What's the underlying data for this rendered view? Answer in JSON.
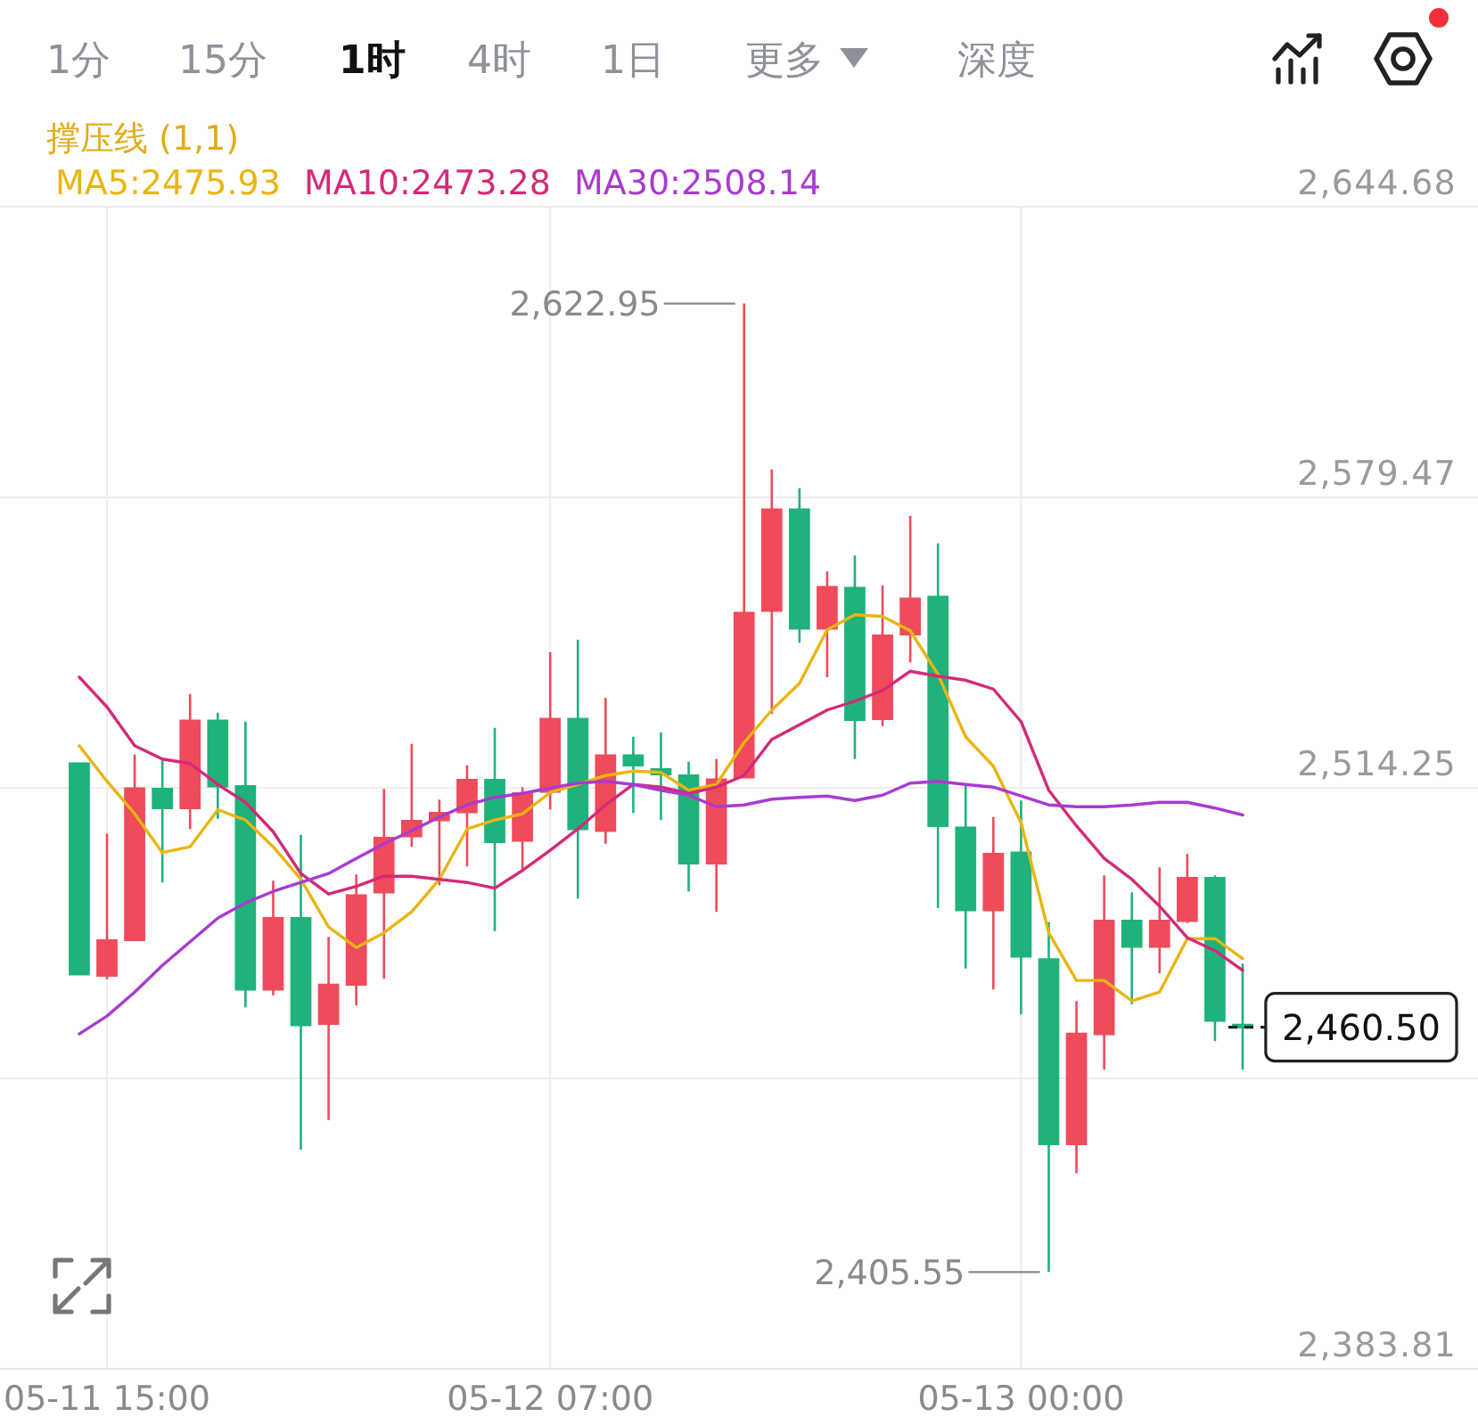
{
  "chart_data": {
    "type": "candlestick",
    "legend_title": "撑压线 (1,1)",
    "legend": "top left",
    "grid": true,
    "annotations": [
      "1分",
      "15分",
      "1时",
      "4时",
      "1日",
      "更多",
      "深度",
      "2,622.95",
      "2,405.55",
      "2,460.50"
    ],
    "categories": [
      null,
      "05-11 15:00",
      null,
      null,
      null,
      null,
      null,
      null,
      null,
      null,
      null,
      null,
      null,
      null,
      null,
      null,
      null,
      "05-12 07:00",
      null,
      null,
      null,
      null,
      null,
      null,
      null,
      null,
      null,
      null,
      null,
      null,
      null,
      null,
      null,
      null,
      "05-13 00:00",
      null,
      null,
      null,
      null,
      null,
      null,
      null,
      null
    ],
    "ohlc": [
      [
        2519.7,
        2519.7,
        2472.4,
        2472.4
      ],
      [
        2472.1,
        2504.0,
        2471.3,
        2480.0
      ],
      [
        2480.1,
        2521.7,
        2480.1,
        2514.1
      ],
      [
        2514.0,
        2520.4,
        2493.0,
        2509.7
      ],
      [
        2509.7,
        2535.3,
        2505.0,
        2529.3
      ],
      [
        2529.3,
        2531.1,
        2507.3,
        2514.6
      ],
      [
        2514.6,
        2529.1,
        2465.0,
        2469.0
      ],
      [
        2469.0,
        2493.4,
        2467.7,
        2485.0
      ],
      [
        2485.0,
        2503.7,
        2433.0,
        2461.0
      ],
      [
        2461.3,
        2480.8,
        2439.7,
        2470.0
      ],
      [
        2470.1,
        2494.8,
        2465.4,
        2490.1
      ],
      [
        2490.8,
        2514.0,
        2471.4,
        2503.0
      ],
      [
        2503.4,
        2524.1,
        2501.0,
        2506.8
      ],
      [
        2507.0,
        2511.6,
        2492.4,
        2508.6
      ],
      [
        2508.8,
        2519.3,
        2496.6,
        2516.0
      ],
      [
        2516.0,
        2527.7,
        2482.1,
        2502.1
      ],
      [
        2502.4,
        2514.4,
        2496.0,
        2513.0
      ],
      [
        2513.4,
        2544.7,
        2509.4,
        2529.7
      ],
      [
        2529.7,
        2547.5,
        2489.4,
        2505.0
      ],
      [
        2504.6,
        2534.4,
        2501.7,
        2521.5
      ],
      [
        2521.5,
        2525.7,
        2508.6,
        2519.3
      ],
      [
        2518.4,
        2526.7,
        2507.0,
        2517.3
      ],
      [
        2517.0,
        2520.1,
        2491.0,
        2497.3
      ],
      [
        2497.3,
        2520.7,
        2486.4,
        2516.1
      ],
      [
        2516.6,
        2622.95,
        2516.6,
        2553.5
      ],
      [
        2554.0,
        2585.7,
        2530.8,
        2576.7
      ],
      [
        2576.7,
        2581.5,
        2546.8,
        2550.0
      ],
      [
        2550.0,
        2562.8,
        2539.1,
        2559.3
      ],
      [
        2559.1,
        2566.4,
        2520.7,
        2529.5
      ],
      [
        2529.7,
        2559.7,
        2528.1,
        2548.4
      ],
      [
        2548.7,
        2575.3,
        2542.4,
        2556.7
      ],
      [
        2557.1,
        2569.1,
        2487.3,
        2505.7
      ],
      [
        2505.3,
        2515.0,
        2473.7,
        2486.8
      ],
      [
        2486.8,
        2507.7,
        2469.0,
        2499.4
      ],
      [
        2499.7,
        2511.4,
        2463.4,
        2476.4
      ],
      [
        2475.7,
        2484.1,
        2405.55,
        2434.3
      ],
      [
        2434.3,
        2466.4,
        2427.7,
        2459.0
      ],
      [
        2459.0,
        2494.6,
        2451.0,
        2484.4
      ],
      [
        2484.4,
        2490.8,
        2465.7,
        2478.6
      ],
      [
        2478.6,
        2496.4,
        2472.6,
        2484.4
      ],
      [
        2484.4,
        2499.4,
        2483.9,
        2494.0
      ],
      [
        2494.0,
        2494.6,
        2457.4,
        2462.0
      ],
      [
        2461.0,
        2474.8,
        2451.0,
        2460.5
      ]
    ],
    "colors": [
      "#1fb27a",
      "#ef4b5b",
      "#ef4b5b",
      "#1fb27a",
      "#ef4b5b",
      "#1fb27a",
      "#1fb27a",
      "#ef4b5b",
      "#1fb27a",
      "#ef4b5b",
      "#ef4b5b",
      "#ef4b5b",
      "#ef4b5b",
      "#ef4b5b",
      "#ef4b5b",
      "#1fb27a",
      "#ef4b5b",
      "#ef4b5b",
      "#1fb27a",
      "#ef4b5b",
      "#1fb27a",
      "#1fb27a",
      "#1fb27a",
      "#ef4b5b",
      "#ef4b5b",
      "#ef4b5b",
      "#1fb27a",
      "#ef4b5b",
      "#1fb27a",
      "#ef4b5b",
      "#ef4b5b",
      "#1fb27a",
      "#1fb27a",
      "#ef4b5b",
      "#1fb27a",
      "#1fb27a",
      "#ef4b5b",
      "#ef4b5b",
      "#1fb27a",
      "#ef4b5b",
      "#ef4b5b",
      "#1fb27a",
      "#1fb27a"
    ],
    "series": [
      {
        "type": "line",
        "name": "MA5:2475.93",
        "color": "#e9b512",
        "values": [
          2523.7,
          2515.7,
          2508.4,
          2499.7,
          2501.0,
          2509.3,
          2507.0,
          2501.0,
          2493.7,
          2483.0,
          2478.4,
          2481.7,
          2486.4,
          2493.7,
          2505.0,
          2507.0,
          2508.4,
          2513.2,
          2515.0,
          2517.0,
          2518.0,
          2517.7,
          2513.7,
          2515.0,
          2524.4,
          2531.7,
          2537.7,
          2549.7,
          2553.1,
          2552.7,
          2549.5,
          2539.7,
          2525.7,
          2519.1,
          2506.4,
          2481.7,
          2471.0,
          2471.0,
          2466.4,
          2468.4,
          2480.4,
          2480.4,
          2475.93
        ]
      },
      {
        "type": "line",
        "name": "MA10:2473.28",
        "color": "#d42a78",
        "values": [
          2539.1,
          2532.4,
          2523.7,
          2520.7,
          2519.7,
          2515.0,
          2511.0,
          2504.4,
          2495.0,
          2490.4,
          2492.1,
          2494.4,
          2494.4,
          2493.7,
          2493.0,
          2491.7,
          2495.7,
          2500.2,
          2505.0,
          2510.4,
          2515.0,
          2514.4,
          2513.0,
          2514.4,
          2517.0,
          2525.1,
          2528.4,
          2531.7,
          2533.7,
          2536.1,
          2540.4,
          2539.3,
          2538.4,
          2536.4,
          2529.1,
          2513.7,
          2505.7,
          2498.4,
          2493.7,
          2487.7,
          2480.6,
          2477.7,
          2473.28
        ]
      },
      {
        "type": "line",
        "name": "MA30:2508.14",
        "color": "#a93bd0",
        "values": [
          2459.0,
          2463.0,
          2468.4,
          2474.4,
          2479.7,
          2485.0,
          2488.4,
          2491.0,
          2493.0,
          2495.0,
          2498.4,
          2501.7,
          2504.6,
          2507.7,
          2510.4,
          2512.1,
          2513.0,
          2514.2,
          2515.3,
          2515.7,
          2515.0,
          2513.7,
          2512.6,
          2510.0,
          2510.4,
          2511.7,
          2512.1,
          2512.4,
          2511.4,
          2512.6,
          2515.3,
          2515.7,
          2515.0,
          2514.4,
          2512.4,
          2510.4,
          2510.0,
          2510.0,
          2510.4,
          2511.0,
          2511.0,
          2509.7,
          2508.14
        ]
      }
    ],
    "ylim": [
      2383.81,
      2644.68
    ],
    "yticks": [
      {
        "value": 2383.81,
        "label": "2,383.81"
      },
      {
        "value": 2449.03,
        "label": null
      },
      {
        "value": 2514.25,
        "label": "2,514.25"
      },
      {
        "value": 2579.47,
        "label": "2,579.47"
      },
      {
        "value": 2644.68,
        "label": "2,644.68"
      }
    ]
  }
}
